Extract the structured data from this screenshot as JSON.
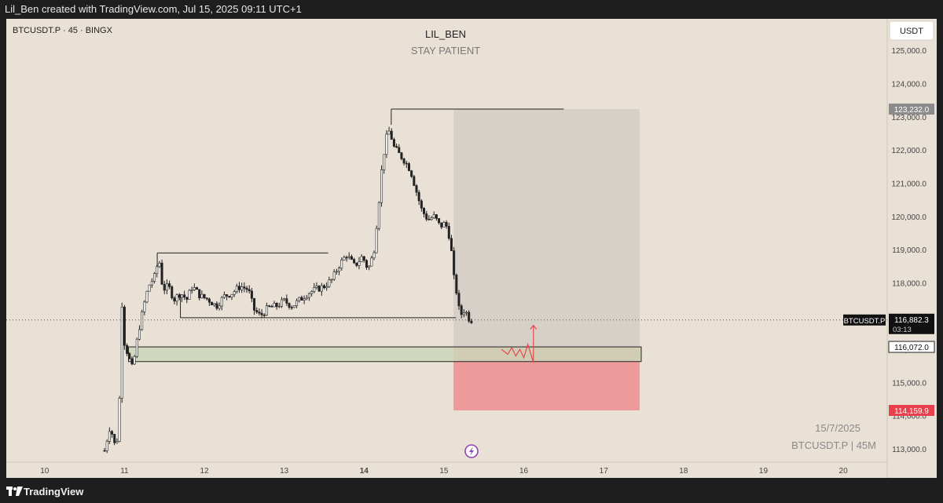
{
  "header": {
    "attribution": "Lil_Ben created with TradingView.com, Jul 15, 2025 09:11 UTC+1"
  },
  "footer": {
    "brand": "TradingView"
  },
  "chart_data": {
    "type": "candlestick",
    "symbol_info": "BTCUSDT.P · 45 · BINGX",
    "title": "LIL_BEN",
    "subtitle": "STAY PATIENT",
    "currency_button": "USDT",
    "watermark_date": "15/7/2025",
    "watermark_symbol": "BTCUSDT.P | 45M",
    "y_axis": {
      "range": [
        112600,
        125950
      ],
      "ticks": [
        125000,
        124000,
        123000,
        122000,
        121000,
        120000,
        119000,
        118000,
        117000,
        116000,
        115000,
        114000,
        113000
      ],
      "tick_labels": [
        "125,000.0",
        "124,000.0",
        "123,000.0",
        "122,000.0",
        "121,000.0",
        "120,000.0",
        "119,000.0",
        "118,000.0",
        "117,000.0",
        "116,000.0",
        "115,000.0",
        "114,000.0",
        "113,000.0"
      ]
    },
    "x_axis": {
      "range": [
        9.52,
        20.55
      ],
      "ticks": [
        10,
        11,
        12,
        13,
        14,
        15,
        16,
        17,
        18,
        19,
        20
      ],
      "tick_labels": [
        "10",
        "11",
        "12",
        "13",
        "14",
        "15",
        "16",
        "17",
        "18",
        "19",
        "20"
      ],
      "bold_tick": "14"
    },
    "price_labels": {
      "symbol_tag": "BTCUSDT.P",
      "last_price": "116,882.3",
      "last_price_value": 116882.3,
      "countdown": "03:13",
      "target": "123,232.0",
      "target_value": 123232,
      "entry": "116,072.0",
      "entry_value": 116072,
      "stop": "114,159.9",
      "stop_value": 114159.9
    },
    "candle_path": [
      [
        10.75,
        112950
      ],
      [
        10.82,
        113700
      ],
      [
        10.88,
        113100
      ],
      [
        10.93,
        113450
      ],
      [
        10.96,
        117700
      ],
      [
        11.0,
        116200
      ],
      [
        11.06,
        115700
      ],
      [
        11.1,
        115400
      ],
      [
        11.18,
        116600
      ],
      [
        11.25,
        117400
      ],
      [
        11.3,
        117900
      ],
      [
        11.38,
        118200
      ],
      [
        11.43,
        118750
      ],
      [
        11.48,
        117800
      ],
      [
        11.55,
        117900
      ],
      [
        11.62,
        117500
      ],
      [
        11.7,
        117700
      ],
      [
        11.78,
        117500
      ],
      [
        11.85,
        117900
      ],
      [
        11.95,
        117600
      ],
      [
        12.05,
        117500
      ],
      [
        12.15,
        117300
      ],
      [
        12.25,
        117600
      ],
      [
        12.35,
        117700
      ],
      [
        12.45,
        117900
      ],
      [
        12.55,
        117800
      ],
      [
        12.62,
        117200
      ],
      [
        12.7,
        117000
      ],
      [
        12.8,
        117250
      ],
      [
        12.9,
        117300
      ],
      [
        13.0,
        117450
      ],
      [
        13.1,
        117300
      ],
      [
        13.2,
        117500
      ],
      [
        13.3,
        117700
      ],
      [
        13.4,
        117800
      ],
      [
        13.5,
        117900
      ],
      [
        13.6,
        118100
      ],
      [
        13.68,
        118500
      ],
      [
        13.78,
        118850
      ],
      [
        13.88,
        118500
      ],
      [
        13.98,
        118800
      ],
      [
        14.05,
        118400
      ],
      [
        14.12,
        118900
      ],
      [
        14.18,
        120300
      ],
      [
        14.22,
        121400
      ],
      [
        14.27,
        122300
      ],
      [
        14.32,
        122600
      ],
      [
        14.37,
        122100
      ],
      [
        14.43,
        121900
      ],
      [
        14.5,
        121700
      ],
      [
        14.58,
        121400
      ],
      [
        14.65,
        120800
      ],
      [
        14.72,
        120200
      ],
      [
        14.8,
        119900
      ],
      [
        14.88,
        120000
      ],
      [
        14.95,
        119700
      ],
      [
        15.02,
        119800
      ],
      [
        15.08,
        119300
      ],
      [
        15.12,
        118200
      ],
      [
        15.16,
        117700
      ],
      [
        15.2,
        117000
      ],
      [
        15.26,
        117200
      ],
      [
        15.32,
        116900
      ],
      [
        15.35,
        116882
      ]
    ],
    "levels": {
      "resistance_high": {
        "price": 123232,
        "x_from": 14.34,
        "x_to": 16.5
      },
      "range_high": {
        "price": 118900,
        "x_from": 11.41,
        "x_to": 13.55
      },
      "range_low": {
        "price": 116950,
        "x_from": 11.7,
        "x_to": 15.15
      }
    },
    "zones": {
      "demand": {
        "top": 116072,
        "bottom": 115630,
        "x_from": 11.05,
        "x_to": 17.47
      },
      "target_area": {
        "top": 123232,
        "bottom": 116072,
        "x_from": 15.12,
        "x_to": 17.45
      },
      "stop_area": {
        "top": 116072,
        "bottom": 114159.9,
        "x_from": 15.12,
        "x_to": 17.45
      }
    },
    "projection": {
      "path": [
        [
          15.72,
          116000
        ],
        [
          15.8,
          115850
        ],
        [
          15.85,
          116050
        ],
        [
          15.9,
          115800
        ],
        [
          15.95,
          116000
        ],
        [
          16.0,
          115750
        ],
        [
          16.05,
          116150
        ],
        [
          16.12,
          115600
        ],
        [
          16.12,
          116720
        ]
      ]
    },
    "colors": {
      "background": "#e9e1d6",
      "candle": "#222222",
      "demand_fill": "#cbd6b8",
      "target_fill": "#d7d0c8",
      "stop_fill": "#ee9a9b",
      "stop_label": "#e8404c",
      "target_label": "#8b8b8b",
      "projection": "#e5484d"
    }
  }
}
